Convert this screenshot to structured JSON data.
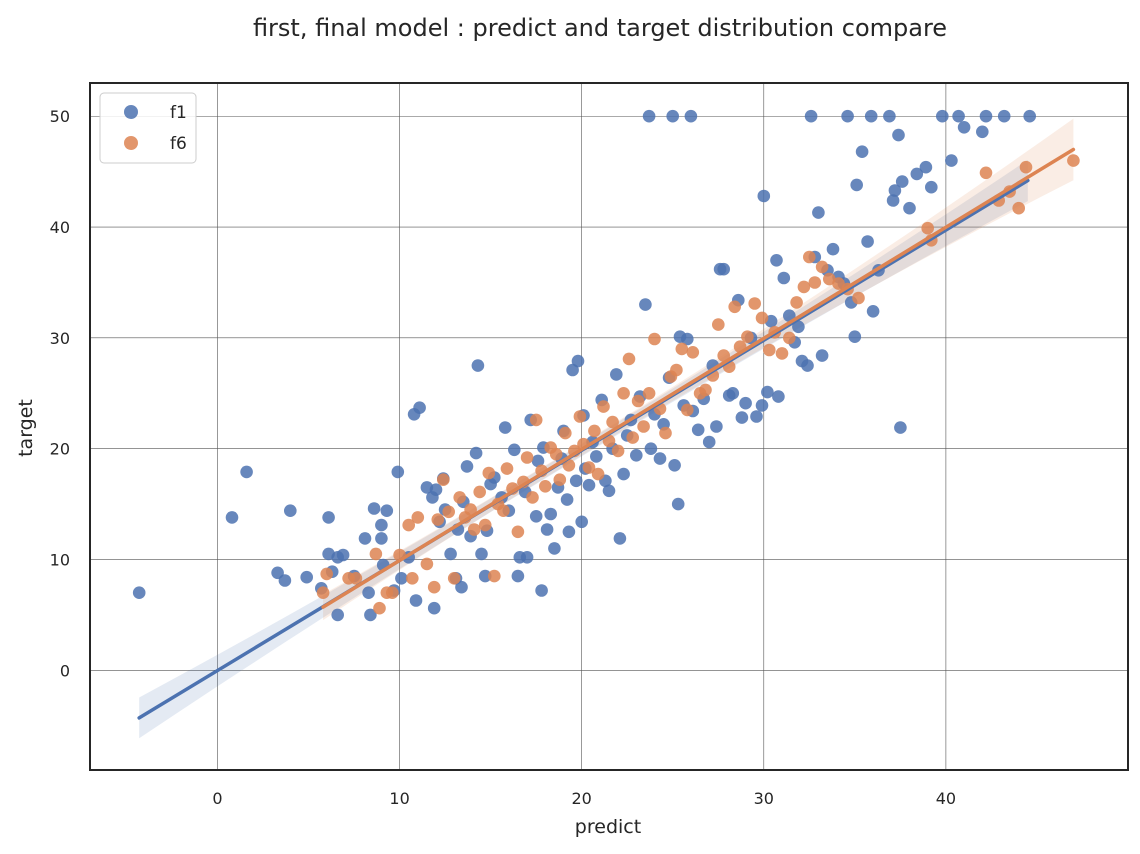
{
  "chart_data": {
    "type": "scatter",
    "title": "first, final model : predict and target distribution compare",
    "xlabel": "predict",
    "ylabel": "target",
    "xlim": [
      -7,
      50
    ],
    "ylim": [
      -9,
      53
    ],
    "xticks": [
      0,
      10,
      20,
      30,
      40
    ],
    "yticks": [
      0,
      10,
      20,
      30,
      40,
      50
    ],
    "grid": true,
    "legend_position": "top-left",
    "series": [
      {
        "name": "f1",
        "color": "#4c72b0",
        "regression_line": {
          "x_start": -4.3,
          "y_start": -4.3,
          "x_end": 44.5,
          "y_end": 44.2
        },
        "points": [
          [
            -4.3,
            7.0
          ],
          [
            0.8,
            13.8
          ],
          [
            1.6,
            17.9
          ],
          [
            3.3,
            8.8
          ],
          [
            3.7,
            8.1
          ],
          [
            4.0,
            14.4
          ],
          [
            4.9,
            8.4
          ],
          [
            5.7,
            7.4
          ],
          [
            6.1,
            13.8
          ],
          [
            6.1,
            10.5
          ],
          [
            6.3,
            8.9
          ],
          [
            6.6,
            5.0
          ],
          [
            6.6,
            10.2
          ],
          [
            6.9,
            10.4
          ],
          [
            7.5,
            8.5
          ],
          [
            8.1,
            11.9
          ],
          [
            8.3,
            7.0
          ],
          [
            8.4,
            5.0
          ],
          [
            8.6,
            14.6
          ],
          [
            9.0,
            13.1
          ],
          [
            9.0,
            11.9
          ],
          [
            9.1,
            9.5
          ],
          [
            9.3,
            14.4
          ],
          [
            9.7,
            7.2
          ],
          [
            9.9,
            17.9
          ],
          [
            10.1,
            8.3
          ],
          [
            10.5,
            10.2
          ],
          [
            10.8,
            23.1
          ],
          [
            10.9,
            6.3
          ],
          [
            11.1,
            23.7
          ],
          [
            11.5,
            16.5
          ],
          [
            11.8,
            15.6
          ],
          [
            11.9,
            5.6
          ],
          [
            12.0,
            16.3
          ],
          [
            12.2,
            13.4
          ],
          [
            12.4,
            17.3
          ],
          [
            12.5,
            14.5
          ],
          [
            12.8,
            10.5
          ],
          [
            13.1,
            8.3
          ],
          [
            13.2,
            12.7
          ],
          [
            13.4,
            7.5
          ],
          [
            13.5,
            15.2
          ],
          [
            13.7,
            18.4
          ],
          [
            13.9,
            12.1
          ],
          [
            14.2,
            19.6
          ],
          [
            14.3,
            27.5
          ],
          [
            14.5,
            10.5
          ],
          [
            14.7,
            8.5
          ],
          [
            14.8,
            12.6
          ],
          [
            15.0,
            16.8
          ],
          [
            15.2,
            17.4
          ],
          [
            15.6,
            15.6
          ],
          [
            15.8,
            21.9
          ],
          [
            16.0,
            14.4
          ],
          [
            16.3,
            19.9
          ],
          [
            16.5,
            8.5
          ],
          [
            16.6,
            10.2
          ],
          [
            16.9,
            16.1
          ],
          [
            17.0,
            10.2
          ],
          [
            17.2,
            22.6
          ],
          [
            17.5,
            13.9
          ],
          [
            17.6,
            18.9
          ],
          [
            17.8,
            7.2
          ],
          [
            17.9,
            20.1
          ],
          [
            18.1,
            12.7
          ],
          [
            18.3,
            14.1
          ],
          [
            18.5,
            11.0
          ],
          [
            18.7,
            16.5
          ],
          [
            18.9,
            19.1
          ],
          [
            19.0,
            21.6
          ],
          [
            19.2,
            15.4
          ],
          [
            19.3,
            12.5
          ],
          [
            19.5,
            27.1
          ],
          [
            19.7,
            17.1
          ],
          [
            19.8,
            27.9
          ],
          [
            20.0,
            13.4
          ],
          [
            20.1,
            23.0
          ],
          [
            20.2,
            18.2
          ],
          [
            20.4,
            16.7
          ],
          [
            20.6,
            20.6
          ],
          [
            20.8,
            19.3
          ],
          [
            21.1,
            24.4
          ],
          [
            21.3,
            17.1
          ],
          [
            21.5,
            16.2
          ],
          [
            21.7,
            20.0
          ],
          [
            21.9,
            26.7
          ],
          [
            22.1,
            11.9
          ],
          [
            22.3,
            17.7
          ],
          [
            22.5,
            21.2
          ],
          [
            22.7,
            22.6
          ],
          [
            23.0,
            19.4
          ],
          [
            23.2,
            24.7
          ],
          [
            23.5,
            33.0
          ],
          [
            23.7,
            50.0
          ],
          [
            23.8,
            20.0
          ],
          [
            24.0,
            23.1
          ],
          [
            24.3,
            19.1
          ],
          [
            24.5,
            22.2
          ],
          [
            24.8,
            26.4
          ],
          [
            25.0,
            50.0
          ],
          [
            25.1,
            18.5
          ],
          [
            25.3,
            15.0
          ],
          [
            25.4,
            30.1
          ],
          [
            25.6,
            23.9
          ],
          [
            25.8,
            29.9
          ],
          [
            26.0,
            50.0
          ],
          [
            26.1,
            23.4
          ],
          [
            26.4,
            21.7
          ],
          [
            26.7,
            24.5
          ],
          [
            27.0,
            20.6
          ],
          [
            27.2,
            27.5
          ],
          [
            27.4,
            22.0
          ],
          [
            27.6,
            36.2
          ],
          [
            27.8,
            36.2
          ],
          [
            28.1,
            24.8
          ],
          [
            28.3,
            25.0
          ],
          [
            28.6,
            33.4
          ],
          [
            28.8,
            22.8
          ],
          [
            29.0,
            24.1
          ],
          [
            29.3,
            30.0
          ],
          [
            29.6,
            22.9
          ],
          [
            29.9,
            23.9
          ],
          [
            30.0,
            42.8
          ],
          [
            30.2,
            25.1
          ],
          [
            30.4,
            31.5
          ],
          [
            30.7,
            37.0
          ],
          [
            30.8,
            24.7
          ],
          [
            31.1,
            35.4
          ],
          [
            31.4,
            32.0
          ],
          [
            31.7,
            29.6
          ],
          [
            31.9,
            31.0
          ],
          [
            32.1,
            27.9
          ],
          [
            32.4,
            27.5
          ],
          [
            32.6,
            50.0
          ],
          [
            32.8,
            37.3
          ],
          [
            33.0,
            41.3
          ],
          [
            33.2,
            28.4
          ],
          [
            33.5,
            36.1
          ],
          [
            33.8,
            38.0
          ],
          [
            34.1,
            35.5
          ],
          [
            34.4,
            34.9
          ],
          [
            34.6,
            50.0
          ],
          [
            34.8,
            33.2
          ],
          [
            35.0,
            30.1
          ],
          [
            35.1,
            43.8
          ],
          [
            35.4,
            46.8
          ],
          [
            35.7,
            38.7
          ],
          [
            35.9,
            50.0
          ],
          [
            36.0,
            32.4
          ],
          [
            36.3,
            36.1
          ],
          [
            36.9,
            50.0
          ],
          [
            37.1,
            42.4
          ],
          [
            37.2,
            43.3
          ],
          [
            37.4,
            48.3
          ],
          [
            37.5,
            21.9
          ],
          [
            37.6,
            44.1
          ],
          [
            38.0,
            41.7
          ],
          [
            38.4,
            44.8
          ],
          [
            38.9,
            45.4
          ],
          [
            39.2,
            43.6
          ],
          [
            39.8,
            50.0
          ],
          [
            40.3,
            46.0
          ],
          [
            40.7,
            50.0
          ],
          [
            41.0,
            49.0
          ],
          [
            42.0,
            48.6
          ],
          [
            42.2,
            50.0
          ],
          [
            43.2,
            50.0
          ],
          [
            44.6,
            50.0
          ]
        ]
      },
      {
        "name": "f6",
        "color": "#dd8452",
        "regression_line": {
          "x_start": 5.8,
          "y_start": 5.7,
          "x_end": 47.0,
          "y_end": 47.0
        },
        "points": [
          [
            5.8,
            7.0
          ],
          [
            6.0,
            8.7
          ],
          [
            7.2,
            8.3
          ],
          [
            7.6,
            8.3
          ],
          [
            8.7,
            10.5
          ],
          [
            8.9,
            5.6
          ],
          [
            9.3,
            7.0
          ],
          [
            9.6,
            7.0
          ],
          [
            10.0,
            10.4
          ],
          [
            10.5,
            13.1
          ],
          [
            10.7,
            8.3
          ],
          [
            11.0,
            13.8
          ],
          [
            11.5,
            9.6
          ],
          [
            11.9,
            7.5
          ],
          [
            12.1,
            13.6
          ],
          [
            12.4,
            17.2
          ],
          [
            12.7,
            14.3
          ],
          [
            13.0,
            8.3
          ],
          [
            13.3,
            15.6
          ],
          [
            13.6,
            13.8
          ],
          [
            13.9,
            14.5
          ],
          [
            14.1,
            12.7
          ],
          [
            14.4,
            16.1
          ],
          [
            14.7,
            13.1
          ],
          [
            14.9,
            17.8
          ],
          [
            15.2,
            8.5
          ],
          [
            15.4,
            15.0
          ],
          [
            15.7,
            14.4
          ],
          [
            15.9,
            18.2
          ],
          [
            16.2,
            16.4
          ],
          [
            16.5,
            12.5
          ],
          [
            16.8,
            17.0
          ],
          [
            17.0,
            19.2
          ],
          [
            17.3,
            15.6
          ],
          [
            17.5,
            22.6
          ],
          [
            17.8,
            18.0
          ],
          [
            18.0,
            16.6
          ],
          [
            18.3,
            20.1
          ],
          [
            18.6,
            19.5
          ],
          [
            18.8,
            17.2
          ],
          [
            19.1,
            21.4
          ],
          [
            19.3,
            18.5
          ],
          [
            19.6,
            19.8
          ],
          [
            19.9,
            22.9
          ],
          [
            20.1,
            20.4
          ],
          [
            20.4,
            18.3
          ],
          [
            20.7,
            21.6
          ],
          [
            20.9,
            17.7
          ],
          [
            21.2,
            23.8
          ],
          [
            21.5,
            20.7
          ],
          [
            21.7,
            22.4
          ],
          [
            22.0,
            19.8
          ],
          [
            22.3,
            25.0
          ],
          [
            22.6,
            28.1
          ],
          [
            22.8,
            21.0
          ],
          [
            23.1,
            24.3
          ],
          [
            23.4,
            22.0
          ],
          [
            23.7,
            25.0
          ],
          [
            24.0,
            29.9
          ],
          [
            24.3,
            23.6
          ],
          [
            24.6,
            21.4
          ],
          [
            24.9,
            26.5
          ],
          [
            25.2,
            27.1
          ],
          [
            25.5,
            29.0
          ],
          [
            25.8,
            23.5
          ],
          [
            26.1,
            28.7
          ],
          [
            26.5,
            25.0
          ],
          [
            26.8,
            25.3
          ],
          [
            27.2,
            26.6
          ],
          [
            27.5,
            31.2
          ],
          [
            27.8,
            28.4
          ],
          [
            28.1,
            27.4
          ],
          [
            28.4,
            32.8
          ],
          [
            28.7,
            29.2
          ],
          [
            29.1,
            30.1
          ],
          [
            29.5,
            33.1
          ],
          [
            29.9,
            31.8
          ],
          [
            30.3,
            28.9
          ],
          [
            30.6,
            30.5
          ],
          [
            31.0,
            28.6
          ],
          [
            31.4,
            30.0
          ],
          [
            31.8,
            33.2
          ],
          [
            32.2,
            34.6
          ],
          [
            32.5,
            37.3
          ],
          [
            32.8,
            35.0
          ],
          [
            33.2,
            36.4
          ],
          [
            33.6,
            35.3
          ],
          [
            34.1,
            34.9
          ],
          [
            34.6,
            34.4
          ],
          [
            35.2,
            33.6
          ],
          [
            39.0,
            39.9
          ],
          [
            39.2,
            38.8
          ],
          [
            42.2,
            44.9
          ],
          [
            42.9,
            42.4
          ],
          [
            43.5,
            43.2
          ],
          [
            44.0,
            41.7
          ],
          [
            44.4,
            45.4
          ],
          [
            47.0,
            46.0
          ]
        ]
      }
    ]
  }
}
